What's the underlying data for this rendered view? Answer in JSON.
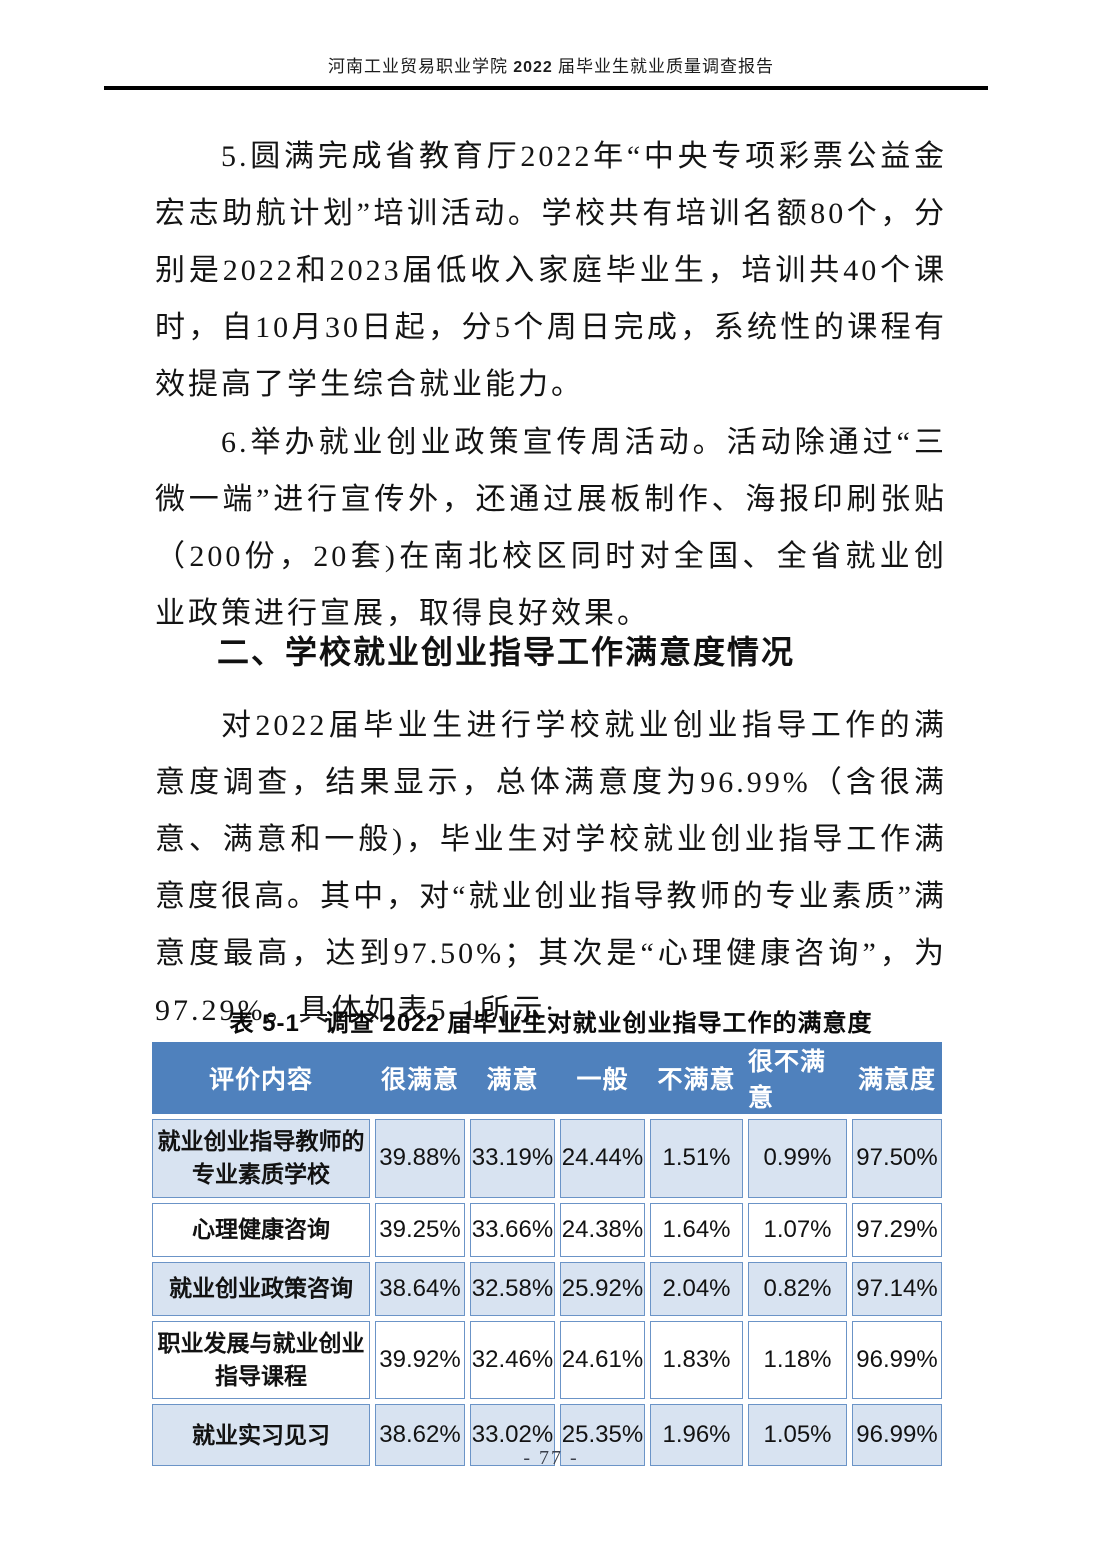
{
  "page_header": {
    "title_prefix": "河南工业贸易职业学院 ",
    "title_year": "2022",
    "title_suffix": " 届毕业生就业质量调查报告"
  },
  "paragraphs": {
    "p5": "5.圆满完成省教育厅2022年“中央专项彩票公益金宏志助航计划”培训活动。学校共有培训名额80个，分别是2022和2023届低收入家庭毕业生，培训共40个课时，自10月30日起，分5个周日完成，系统性的课程有效提高了学生综合就业能力。",
    "p6": "6.举办就业创业政策宣传周活动。活动除通过“三微一端”进行宣传外，还通过展板制作、海报印刷张贴（200份，20套)在南北校区同时对全国、全省就业创业政策进行宣展，取得良好效果。",
    "intro": "对2022届毕业生进行学校就业创业指导工作的满意度调查，结果显示，总体满意度为96.99%（含很满意、满意和一般)，毕业生对学校就业创业指导工作满意度很高。其中，对“就业创业指导教师的专业素质”满意度最高，达到97.50%；其次是“心理健康咨询”，为97.29%。具体如表5-1所示:"
  },
  "section_heading": "二、学校就业创业指导工作满意度情况",
  "table": {
    "caption": "表 5-1　调查 2022 届毕业生对就业创业指导工作的满意度",
    "headers": [
      "评价内容",
      "很满意",
      "满意",
      "一般",
      "不满意",
      "很不满意",
      "满意度"
    ],
    "rows": [
      {
        "label": "就业创业指导教师的专业素质学校",
        "cells": [
          "39.88%",
          "33.19%",
          "24.44%",
          "1.51%",
          "0.99%",
          "97.50%"
        ]
      },
      {
        "label": "心理健康咨询",
        "cells": [
          "39.25%",
          "33.66%",
          "24.38%",
          "1.64%",
          "1.07%",
          "97.29%"
        ]
      },
      {
        "label": "就业创业政策咨询",
        "cells": [
          "38.64%",
          "32.58%",
          "25.92%",
          "2.04%",
          "0.82%",
          "97.14%"
        ]
      },
      {
        "label": "职业发展与就业创业指导课程",
        "cells": [
          "39.92%",
          "32.46%",
          "24.61%",
          "1.83%",
          "1.18%",
          "96.99%"
        ]
      },
      {
        "label": "就业实习见习",
        "cells": [
          "38.62%",
          "33.02%",
          "25.35%",
          "1.96%",
          "1.05%",
          "96.99%"
        ]
      }
    ],
    "colors": {
      "header_bg": "#4F81BD",
      "header_text": "#FFFFFF",
      "row_alt_bg": "#D8E3F1",
      "cell_border": "#6B94C7"
    }
  },
  "footer": {
    "page_number": "- 77 -"
  }
}
